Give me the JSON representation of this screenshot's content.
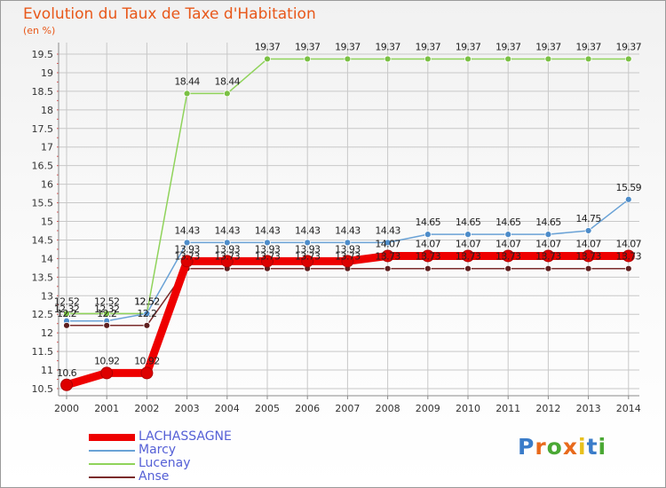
{
  "title": "Evolution du Taux de Taxe d'Habitation",
  "unit": "(en %)",
  "colors": {
    "title": "#e8581a",
    "grid": "#c8c8c8",
    "axis": "#8a8a8a",
    "minor_tick": "#e05050"
  },
  "logo": {
    "letters": [
      "P",
      "r",
      "o",
      "x",
      "i",
      "t",
      "i"
    ],
    "colors": [
      "#3a7cc9",
      "#e86a1c",
      "#4aa834",
      "#e86a1c",
      "#e8c01c",
      "#3a7cc9",
      "#4aa834"
    ]
  },
  "chart_data": {
    "type": "line",
    "title": "Evolution du Taux de Taxe d'Habitation",
    "ylabel": "(en %)",
    "xlabel": "",
    "categories": [
      "2000",
      "2001",
      "2002",
      "2003",
      "2004",
      "2005",
      "2006",
      "2007",
      "2008",
      "2009",
      "2010",
      "2011",
      "2012",
      "2013",
      "2014"
    ],
    "ylim": [
      10.5,
      19.5
    ],
    "yticks": [
      "10.5",
      "11",
      "11.5",
      "12",
      "12.5",
      "13",
      "13.5",
      "14",
      "14.5",
      "15",
      "15.5",
      "16",
      "16.5",
      "17",
      "17.5",
      "18",
      "18.5",
      "19",
      "19.5"
    ],
    "grid": true,
    "series": [
      {
        "name": "Lucenay",
        "color": "#8fd35a",
        "marker": "#7ac043",
        "width": 1.5,
        "radius": 3.5,
        "values": [
          12.52,
          12.52,
          12.52,
          18.44,
          18.44,
          19.37,
          19.37,
          19.37,
          19.37,
          19.37,
          19.37,
          19.37,
          19.37,
          19.37,
          19.37
        ],
        "labels": [
          "12.52",
          "12.52",
          "12.52",
          "18.44",
          "18.44",
          "19.37",
          "19.37",
          "19.37",
          "19.37",
          "19.37",
          "19.37",
          "19.37",
          "19.37",
          "19.37",
          "19.37"
        ]
      },
      {
        "name": "Marcy",
        "color": "#6aa2d6",
        "marker": "#4d8cc9",
        "width": 1.5,
        "radius": 3.5,
        "values": [
          12.32,
          12.32,
          12.52,
          14.43,
          14.43,
          14.43,
          14.43,
          14.43,
          14.43,
          14.65,
          14.65,
          14.65,
          14.65,
          14.75,
          15.59
        ],
        "labels": [
          "12.32",
          "12.32",
          "12.52",
          "14.43",
          "14.43",
          "14.43",
          "14.43",
          "14.43",
          "14.43",
          "14.65",
          "14.65",
          "14.65",
          "14.65",
          "14.75",
          "15.59"
        ]
      },
      {
        "name": "Anse",
        "color": "#7a2b2b",
        "marker": "#5e1f1f",
        "width": 1.5,
        "radius": 3.5,
        "values": [
          12.2,
          12.2,
          12.2,
          13.73,
          13.73,
          13.73,
          13.73,
          13.73,
          13.73,
          13.73,
          13.73,
          13.73,
          13.73,
          13.73,
          13.73
        ],
        "labels": [
          "12.2",
          "12.2",
          "12.2",
          "13.73",
          "13.73",
          "13.73",
          "13.73",
          "13.73",
          "13.73",
          "13.73",
          "13.73",
          "13.73",
          "13.73",
          "13.73",
          "13.73"
        ]
      },
      {
        "name": "LACHASSAGNE",
        "color": "#ee0000",
        "marker": "#dd0000",
        "width": 9,
        "radius": 6.5,
        "values": [
          10.6,
          10.92,
          10.92,
          13.93,
          13.93,
          13.93,
          13.93,
          13.93,
          14.07,
          14.07,
          14.07,
          14.07,
          14.07,
          14.07,
          14.07
        ],
        "labels": [
          "10.6",
          "10.92",
          "10.92",
          "13.93",
          "13.93",
          "13.93",
          "13.93",
          "13.93",
          "14.07",
          "14.07",
          "14.07",
          "14.07",
          "14.07",
          "14.07",
          "14.07"
        ]
      }
    ]
  },
  "legend": [
    {
      "name": "LACHASSAGNE",
      "color": "#ee0000",
      "text_color": "#5560d6",
      "thick": 8
    },
    {
      "name": "Marcy",
      "color": "#6aa2d6",
      "text_color": "#5560d6",
      "thick": 2
    },
    {
      "name": "Lucenay",
      "color": "#8fd35a",
      "text_color": "#5560d6",
      "thick": 2
    },
    {
      "name": "Anse",
      "color": "#7a2b2b",
      "text_color": "#5560d6",
      "thick": 2
    }
  ]
}
